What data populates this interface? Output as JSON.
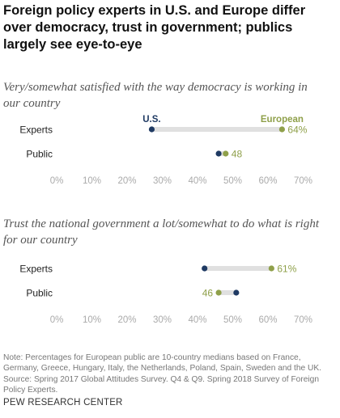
{
  "title": "Foreign policy experts in U.S. and Europe differ over democracy, trust in government; publics largely see eye-to-eye",
  "colors": {
    "us": "#1f3a63",
    "european": "#8fa04a",
    "bar": "#e0e0e0",
    "axis": "#aaaaaa"
  },
  "chart_data": [
    {
      "type": "dot",
      "title": "Very/somewhat satisfied with the way democracy is working in our country",
      "categories": [
        "Experts",
        "Public"
      ],
      "series": [
        {
          "name": "U.S.",
          "values": [
            27,
            46
          ]
        },
        {
          "name": "European",
          "values": [
            64,
            48
          ]
        }
      ],
      "value_labels": {
        "U.S.": [
          "27%",
          "46"
        ],
        "European": [
          "64%",
          "48"
        ]
      },
      "xlim": [
        0,
        70
      ],
      "ticks": [
        "0%",
        "10%",
        "20%",
        "30%",
        "40%",
        "50%",
        "60%",
        "70%"
      ],
      "legend": "inline-above-experts-row"
    },
    {
      "type": "dot",
      "title": "Trust the national government a lot/somewhat to do what is right for our country",
      "categories": [
        "Experts",
        "Public"
      ],
      "series": [
        {
          "name": "U.S.",
          "values": [
            42,
            51
          ]
        },
        {
          "name": "European",
          "values": [
            61,
            46
          ]
        }
      ],
      "value_labels": {
        "U.S.": [
          "42%",
          "51"
        ],
        "European": [
          "61%",
          "46"
        ]
      },
      "xlim": [
        0,
        70
      ],
      "ticks": [
        "0%",
        "10%",
        "20%",
        "30%",
        "40%",
        "50%",
        "60%",
        "70%"
      ]
    }
  ],
  "note": "Note: Percentages for European public are 10-country medians based on France, Germany, Greece, Hungary, Italy, the Netherlands, Poland, Spain, Sweden and the UK. Source: Spring 2017 Global Attitudes Survey. Q4 & Q9. Spring 2018 Survey of Foreign Policy Experts.",
  "credit": "PEW RESEARCH CENTER"
}
